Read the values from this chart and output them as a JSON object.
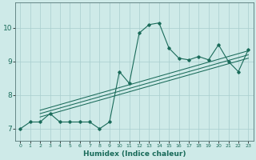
{
  "xlabel": "Humidex (Indice chaleur)",
  "bg_color": "#ceeae8",
  "line_color": "#1a6b5a",
  "grid_color": "#a8cece",
  "xticks": [
    0,
    1,
    2,
    3,
    4,
    5,
    6,
    7,
    8,
    9,
    10,
    11,
    12,
    13,
    14,
    15,
    16,
    17,
    18,
    19,
    20,
    21,
    22,
    23
  ],
  "yticks": [
    7,
    8,
    9,
    10
  ],
  "ylim": [
    6.65,
    10.75
  ],
  "xlim": [
    -0.5,
    23.5
  ],
  "main_x": [
    0,
    1,
    2,
    3,
    4,
    5,
    6,
    7,
    8,
    9,
    10,
    11,
    12,
    13,
    14,
    15,
    16,
    17,
    18,
    19,
    20,
    21,
    22,
    23
  ],
  "main_y": [
    7.0,
    7.2,
    7.2,
    7.45,
    7.2,
    7.2,
    7.2,
    7.2,
    7.0,
    7.2,
    8.7,
    8.35,
    9.85,
    10.1,
    10.15,
    9.4,
    9.1,
    9.05,
    9.15,
    9.05,
    9.5,
    9.0,
    8.7,
    9.35
  ],
  "reg_lines": [
    {
      "x": [
        2,
        23
      ],
      "y": [
        7.35,
        9.1
      ]
    },
    {
      "x": [
        2,
        23
      ],
      "y": [
        7.45,
        9.2
      ]
    },
    {
      "x": [
        2,
        23
      ],
      "y": [
        7.55,
        9.32
      ]
    }
  ]
}
